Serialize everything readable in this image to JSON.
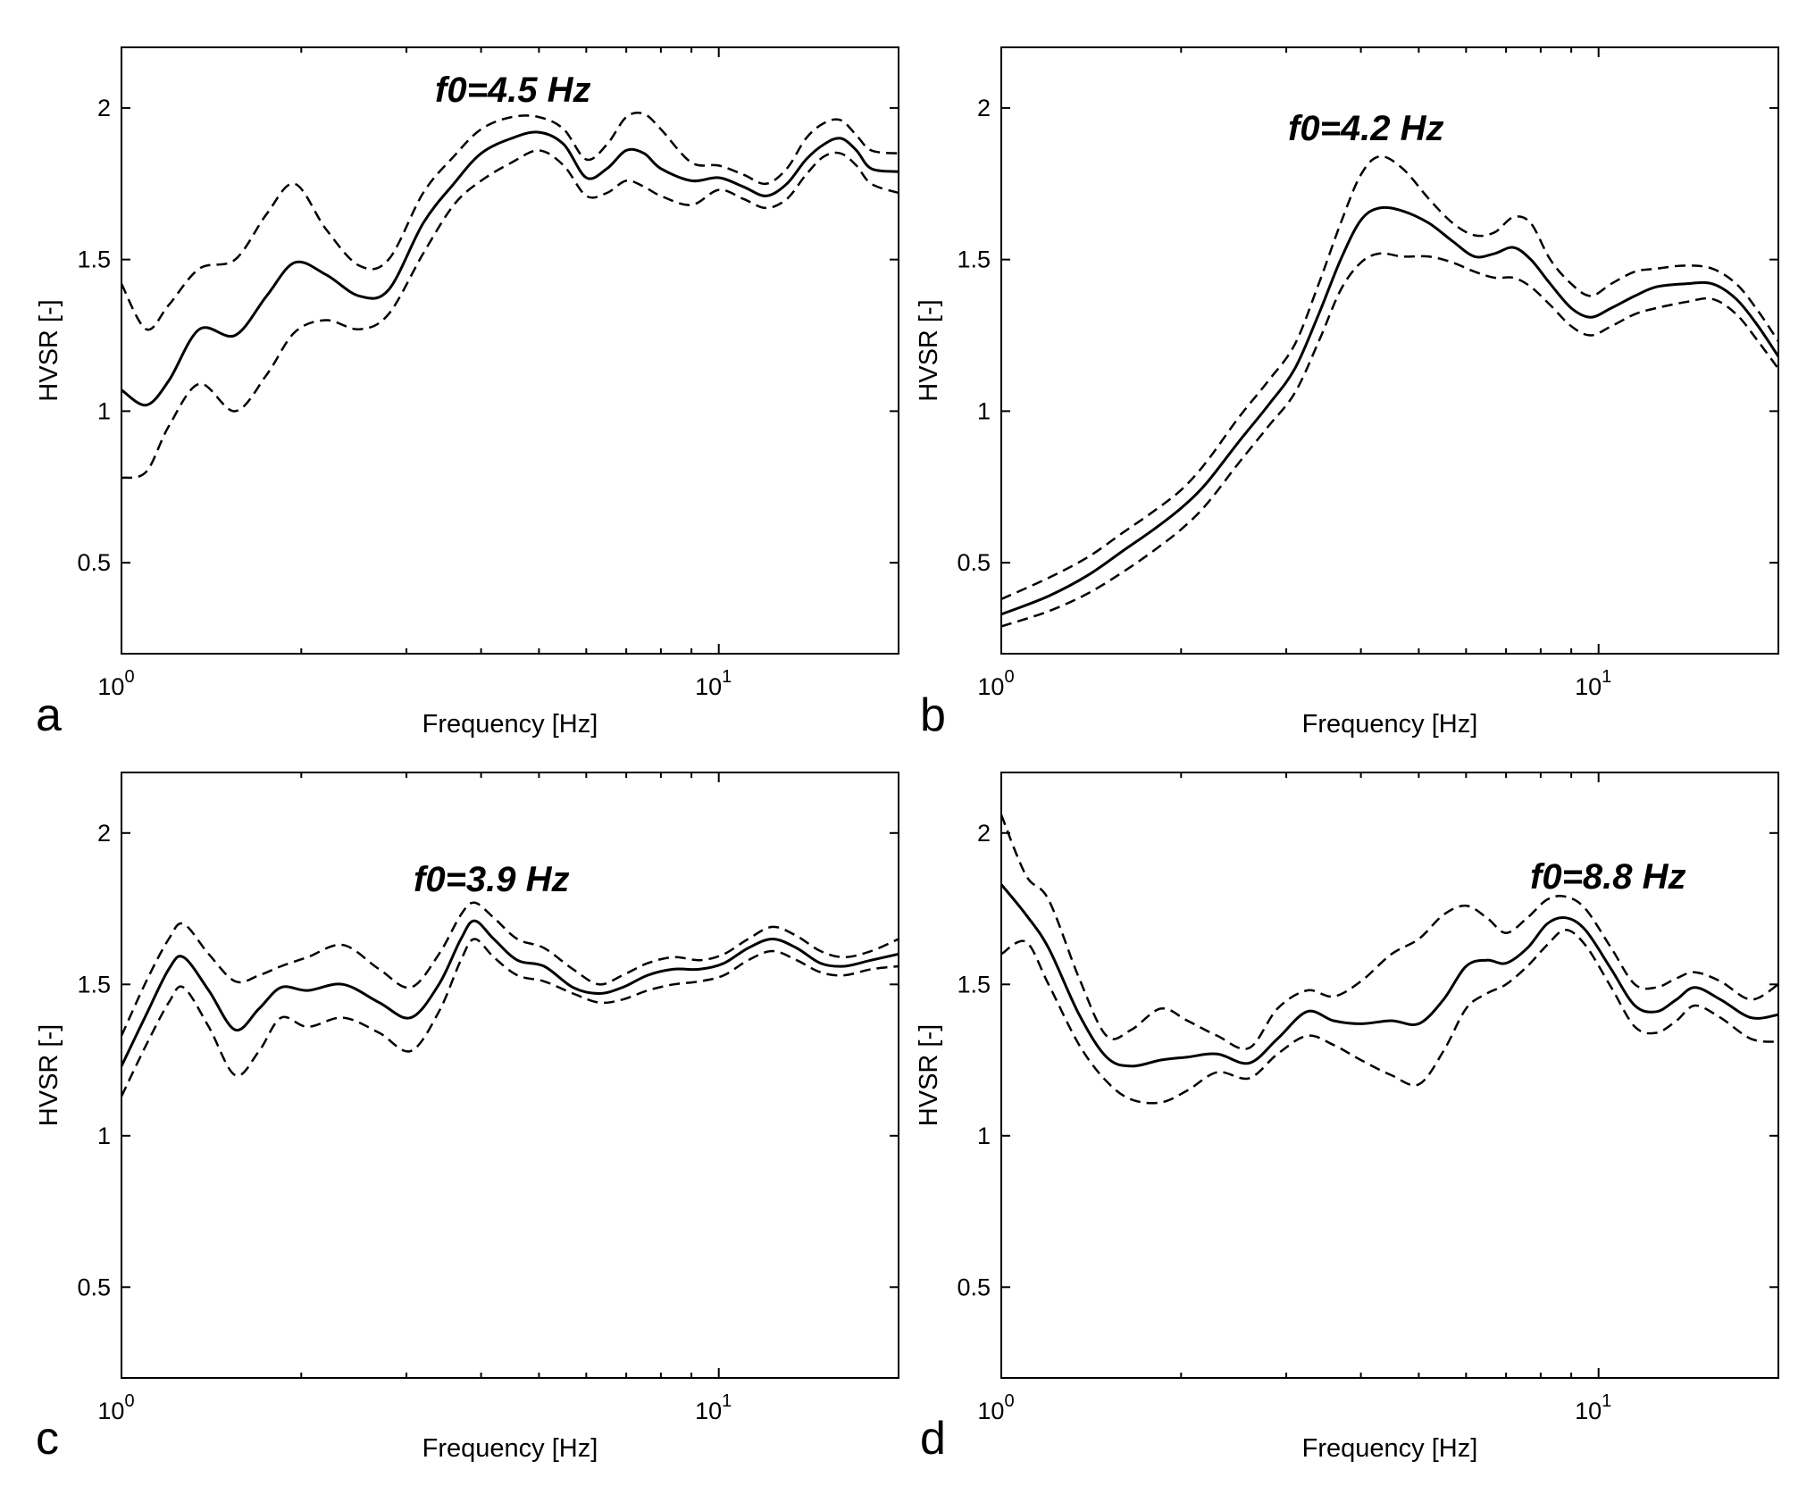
{
  "chart_data": [
    {
      "type": "line",
      "panel": "a",
      "annotation": "f0=4.5 Hz",
      "xlabel": "Frequency [Hz]",
      "ylabel": "HVSR [-]",
      "xscale": "log",
      "xlim": [
        1,
        20
      ],
      "ylim": [
        0.2,
        2.2
      ],
      "yticks": [
        "0.5",
        "1",
        "1.5",
        "2"
      ],
      "xticks": [
        {
          "base": "10",
          "exp": "0"
        },
        {
          "base": "10",
          "exp": "1"
        }
      ],
      "x": [
        1.0,
        1.1,
        1.2,
        1.35,
        1.55,
        1.75,
        1.95,
        2.2,
        2.5,
        2.8,
        3.2,
        3.6,
        4.0,
        4.5,
        5.0,
        5.5,
        6.0,
        6.5,
        7.0,
        7.5,
        8.0,
        9.0,
        10.0,
        11.0,
        12.0,
        13.0,
        14.0,
        15.0,
        16.0,
        17.0,
        18.0,
        20.0
      ],
      "series": [
        {
          "name": "mean",
          "style": "solid",
          "values": [
            1.07,
            1.02,
            1.1,
            1.27,
            1.25,
            1.38,
            1.49,
            1.45,
            1.38,
            1.4,
            1.62,
            1.75,
            1.85,
            1.9,
            1.92,
            1.88,
            1.77,
            1.8,
            1.86,
            1.85,
            1.8,
            1.76,
            1.77,
            1.74,
            1.71,
            1.75,
            1.83,
            1.88,
            1.9,
            1.86,
            1.8,
            1.79
          ]
        },
        {
          "name": "upper",
          "style": "dashed",
          "values": [
            1.42,
            1.27,
            1.35,
            1.47,
            1.5,
            1.65,
            1.75,
            1.6,
            1.48,
            1.5,
            1.72,
            1.84,
            1.93,
            1.97,
            1.97,
            1.93,
            1.83,
            1.88,
            1.97,
            1.98,
            1.93,
            1.82,
            1.81,
            1.78,
            1.75,
            1.8,
            1.9,
            1.95,
            1.96,
            1.91,
            1.86,
            1.85
          ]
        },
        {
          "name": "lower",
          "style": "dashed",
          "values": [
            0.78,
            0.8,
            0.95,
            1.09,
            1.0,
            1.12,
            1.26,
            1.3,
            1.27,
            1.32,
            1.52,
            1.68,
            1.76,
            1.82,
            1.86,
            1.81,
            1.71,
            1.72,
            1.76,
            1.74,
            1.71,
            1.68,
            1.73,
            1.7,
            1.67,
            1.7,
            1.78,
            1.84,
            1.85,
            1.81,
            1.75,
            1.72
          ]
        }
      ]
    },
    {
      "type": "line",
      "panel": "b",
      "annotation": "f0=4.2 Hz",
      "xlabel": "Frequency [Hz]",
      "ylabel": "HVSR [-]",
      "xscale": "log",
      "xlim": [
        1,
        20
      ],
      "ylim": [
        0.2,
        2.2
      ],
      "yticks": [
        "0.5",
        "1",
        "1.5",
        "2"
      ],
      "xticks": [
        {
          "base": "10",
          "exp": "0"
        },
        {
          "base": "10",
          "exp": "1"
        }
      ],
      "x": [
        1.0,
        1.2,
        1.4,
        1.6,
        1.8,
        2.0,
        2.2,
        2.5,
        2.8,
        3.1,
        3.4,
        3.7,
        4.0,
        4.3,
        4.7,
        5.2,
        5.7,
        6.2,
        6.7,
        7.2,
        7.7,
        8.3,
        9.0,
        9.7,
        10.5,
        11.5,
        12.5,
        14.0,
        15.5,
        17.0,
        18.5,
        20.0
      ],
      "series": [
        {
          "name": "mean",
          "style": "solid",
          "values": [
            0.33,
            0.39,
            0.46,
            0.54,
            0.61,
            0.68,
            0.76,
            0.9,
            1.02,
            1.14,
            1.32,
            1.5,
            1.63,
            1.67,
            1.66,
            1.62,
            1.56,
            1.51,
            1.52,
            1.54,
            1.5,
            1.42,
            1.34,
            1.31,
            1.34,
            1.38,
            1.41,
            1.42,
            1.42,
            1.37,
            1.28,
            1.18
          ]
        },
        {
          "name": "upper",
          "style": "dashed",
          "values": [
            0.38,
            0.45,
            0.52,
            0.6,
            0.67,
            0.74,
            0.83,
            0.98,
            1.1,
            1.22,
            1.42,
            1.62,
            1.78,
            1.84,
            1.8,
            1.7,
            1.62,
            1.58,
            1.59,
            1.64,
            1.62,
            1.5,
            1.42,
            1.38,
            1.42,
            1.46,
            1.47,
            1.48,
            1.47,
            1.42,
            1.33,
            1.23
          ]
        },
        {
          "name": "lower",
          "style": "dashed",
          "values": [
            0.29,
            0.34,
            0.4,
            0.47,
            0.54,
            0.61,
            0.69,
            0.83,
            0.95,
            1.06,
            1.23,
            1.4,
            1.49,
            1.52,
            1.51,
            1.51,
            1.49,
            1.46,
            1.44,
            1.44,
            1.41,
            1.35,
            1.28,
            1.25,
            1.28,
            1.32,
            1.34,
            1.36,
            1.37,
            1.32,
            1.23,
            1.14
          ]
        }
      ]
    },
    {
      "type": "line",
      "panel": "c",
      "annotation": "f0=3.9 Hz",
      "xlabel": "Frequency [Hz]",
      "ylabel": "HVSR [-]",
      "xscale": "log",
      "xlim": [
        1,
        20
      ],
      "ylim": [
        0.2,
        2.2
      ],
      "yticks": [
        "0.5",
        "1",
        "1.5",
        "2"
      ],
      "xticks": [
        {
          "base": "10",
          "exp": "0"
        },
        {
          "base": "10",
          "exp": "1"
        }
      ],
      "x": [
        1.0,
        1.1,
        1.2,
        1.27,
        1.4,
        1.55,
        1.7,
        1.85,
        2.05,
        2.35,
        2.7,
        3.05,
        3.4,
        3.7,
        3.9,
        4.2,
        4.6,
        5.1,
        5.7,
        6.3,
        6.9,
        7.6,
        8.4,
        9.3,
        10.2,
        11.2,
        12.3,
        13.5,
        14.8,
        16.2,
        18.0,
        20.0
      ],
      "series": [
        {
          "name": "mean",
          "style": "solid",
          "values": [
            1.23,
            1.4,
            1.55,
            1.59,
            1.48,
            1.35,
            1.42,
            1.49,
            1.48,
            1.5,
            1.44,
            1.39,
            1.5,
            1.65,
            1.71,
            1.65,
            1.58,
            1.56,
            1.49,
            1.47,
            1.49,
            1.53,
            1.55,
            1.55,
            1.57,
            1.62,
            1.65,
            1.62,
            1.57,
            1.56,
            1.58,
            1.6
          ]
        },
        {
          "name": "upper",
          "style": "dashed",
          "values": [
            1.33,
            1.51,
            1.65,
            1.7,
            1.6,
            1.51,
            1.53,
            1.56,
            1.59,
            1.63,
            1.55,
            1.49,
            1.6,
            1.73,
            1.77,
            1.72,
            1.65,
            1.62,
            1.55,
            1.5,
            1.53,
            1.57,
            1.59,
            1.58,
            1.6,
            1.65,
            1.69,
            1.66,
            1.61,
            1.59,
            1.61,
            1.65
          ]
        },
        {
          "name": "lower",
          "style": "dashed",
          "values": [
            1.13,
            1.3,
            1.44,
            1.49,
            1.36,
            1.2,
            1.28,
            1.39,
            1.36,
            1.39,
            1.34,
            1.28,
            1.41,
            1.58,
            1.65,
            1.59,
            1.53,
            1.51,
            1.47,
            1.44,
            1.45,
            1.48,
            1.5,
            1.51,
            1.53,
            1.58,
            1.61,
            1.58,
            1.54,
            1.53,
            1.55,
            1.56
          ]
        }
      ]
    },
    {
      "type": "line",
      "panel": "d",
      "annotation": "f0=8.8 Hz",
      "xlabel": "Frequency [Hz]",
      "ylabel": "HVSR [-]",
      "xscale": "log",
      "xlim": [
        1,
        20
      ],
      "ylim": [
        0.2,
        2.2
      ],
      "yticks": [
        "0.5",
        "1",
        "1.5",
        "2"
      ],
      "xticks": [
        {
          "base": "10",
          "exp": "0"
        },
        {
          "base": "10",
          "exp": "1"
        }
      ],
      "x": [
        1.0,
        1.1,
        1.2,
        1.35,
        1.5,
        1.65,
        1.85,
        2.05,
        2.3,
        2.6,
        2.9,
        3.25,
        3.6,
        4.0,
        4.5,
        5.0,
        5.5,
        6.0,
        6.5,
        7.0,
        7.6,
        8.2,
        8.8,
        9.5,
        10.5,
        11.5,
        12.5,
        13.5,
        14.5,
        16.0,
        18.0,
        20.0
      ],
      "series": [
        {
          "name": "mean",
          "style": "solid",
          "values": [
            1.83,
            1.73,
            1.62,
            1.4,
            1.26,
            1.23,
            1.25,
            1.26,
            1.27,
            1.24,
            1.32,
            1.41,
            1.38,
            1.37,
            1.38,
            1.37,
            1.45,
            1.56,
            1.58,
            1.57,
            1.62,
            1.7,
            1.72,
            1.68,
            1.55,
            1.43,
            1.41,
            1.45,
            1.49,
            1.45,
            1.39,
            1.4
          ]
        },
        {
          "name": "upper",
          "style": "dashed",
          "values": [
            2.06,
            1.86,
            1.78,
            1.52,
            1.33,
            1.35,
            1.42,
            1.38,
            1.33,
            1.29,
            1.42,
            1.48,
            1.46,
            1.51,
            1.6,
            1.65,
            1.73,
            1.76,
            1.72,
            1.67,
            1.72,
            1.78,
            1.79,
            1.75,
            1.62,
            1.5,
            1.49,
            1.52,
            1.54,
            1.51,
            1.45,
            1.5
          ]
        },
        {
          "name": "lower",
          "style": "dashed",
          "values": [
            1.6,
            1.64,
            1.5,
            1.3,
            1.18,
            1.12,
            1.11,
            1.15,
            1.21,
            1.19,
            1.27,
            1.33,
            1.3,
            1.25,
            1.2,
            1.17,
            1.28,
            1.42,
            1.47,
            1.5,
            1.56,
            1.63,
            1.68,
            1.63,
            1.49,
            1.36,
            1.34,
            1.38,
            1.43,
            1.39,
            1.32,
            1.31
          ]
        }
      ]
    }
  ]
}
